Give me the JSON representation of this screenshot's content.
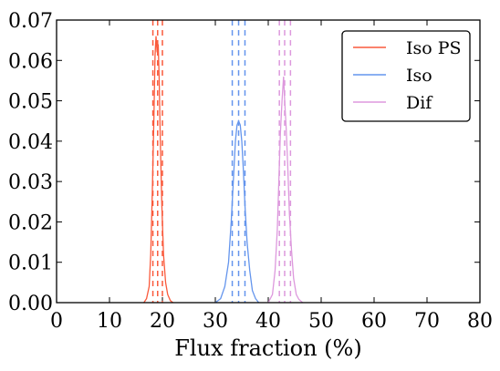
{
  "chart_data": {
    "type": "line",
    "xlabel": "Flux fraction (%)",
    "ylabel": "",
    "xlim": [
      0,
      80
    ],
    "ylim": [
      0,
      0.07
    ],
    "xticks": [
      "0",
      "10",
      "20",
      "30",
      "40",
      "50",
      "60",
      "70",
      "80"
    ],
    "yticks": [
      "0.00",
      "0.01",
      "0.02",
      "0.03",
      "0.04",
      "0.05",
      "0.06",
      "0.07"
    ],
    "grid": false,
    "legend_position": "top-right",
    "series": [
      {
        "name": "Iso PS",
        "color": "#fa5a3c",
        "x": [
          16.5,
          17.0,
          17.5,
          17.8,
          18.1,
          18.4,
          18.6,
          18.8,
          19.0,
          19.2,
          19.4,
          19.6,
          19.9,
          20.2,
          20.6,
          21.0,
          21.5,
          22.0
        ],
        "y": [
          0.0,
          0.001,
          0.004,
          0.012,
          0.028,
          0.046,
          0.061,
          0.066,
          0.062,
          0.064,
          0.055,
          0.04,
          0.024,
          0.012,
          0.005,
          0.002,
          0.0005,
          0.0
        ],
        "quantile_lines": [
          18.2,
          19.1,
          20.0
        ]
      },
      {
        "name": "Iso",
        "color": "#6495ed",
        "x": [
          30.0,
          31.0,
          31.8,
          32.5,
          33.0,
          33.4,
          33.8,
          34.1,
          34.4,
          34.7,
          35.0,
          35.3,
          35.6,
          36.0,
          36.5,
          37.0,
          37.6,
          38.2
        ],
        "y": [
          0.0,
          0.001,
          0.004,
          0.01,
          0.02,
          0.03,
          0.04,
          0.044,
          0.045,
          0.044,
          0.04,
          0.033,
          0.024,
          0.015,
          0.008,
          0.003,
          0.001,
          0.0
        ],
        "quantile_lines": [
          33.2,
          34.4,
          35.6
        ]
      },
      {
        "name": "Dif",
        "color": "#dd99dd",
        "x": [
          40.0,
          40.8,
          41.3,
          41.7,
          42.0,
          42.3,
          42.6,
          42.9,
          43.1,
          43.4,
          43.7,
          44.0,
          44.4,
          44.8,
          45.3,
          45.8,
          46.5
        ],
        "y": [
          0.0,
          0.002,
          0.008,
          0.018,
          0.03,
          0.042,
          0.05,
          0.056,
          0.05,
          0.043,
          0.033,
          0.022,
          0.013,
          0.006,
          0.002,
          0.0008,
          0.0
        ],
        "quantile_lines": [
          42.1,
          43.1,
          44.2
        ]
      }
    ]
  }
}
